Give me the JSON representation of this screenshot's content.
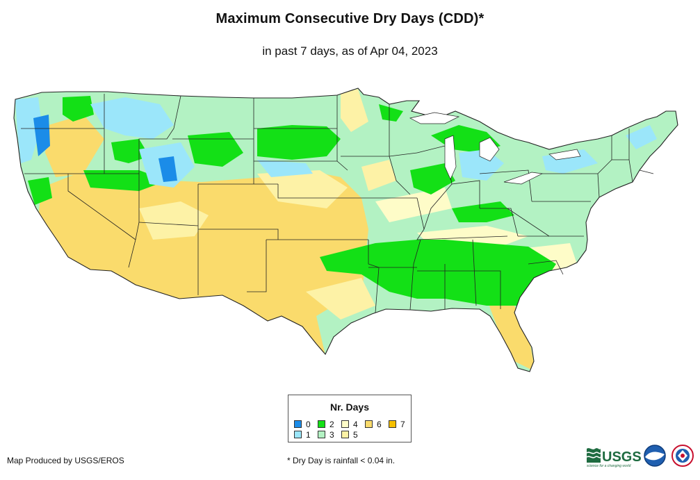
{
  "header": {
    "title": "Maximum Consecutive Dry Days (CDD)*",
    "subtitle": "in past 7 days, as of Apr 04, 2023"
  },
  "legend": {
    "title": "Nr. Days",
    "items": [
      {
        "label": "0",
        "color": "#1b8ce8"
      },
      {
        "label": "1",
        "color": "#9be6fa"
      },
      {
        "label": "2",
        "color": "#13e016"
      },
      {
        "label": "3",
        "color": "#b3f2c3"
      },
      {
        "label": "4",
        "color": "#fefcc8"
      },
      {
        "label": "5",
        "color": "#fdf2a6"
      },
      {
        "label": "6",
        "color": "#fadb6c"
      },
      {
        "label": "7",
        "color": "#f6c000"
      }
    ]
  },
  "footer": {
    "credit": "Map Produced by USGS/EROS",
    "footnote": "* Dry Day is rainfall < 0.04 in.",
    "logo_usgs": "USGS",
    "logo_usgs_tagline": "science for a changing world"
  }
}
